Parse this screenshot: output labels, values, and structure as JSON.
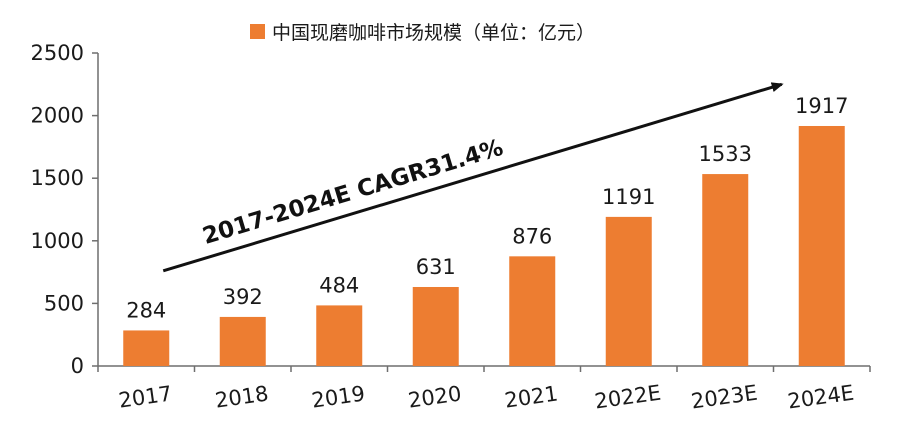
{
  "chart_data": {
    "type": "bar",
    "title": "",
    "legend": {
      "label": "中国现磨咖啡市场规模（单位：亿元）",
      "placement": "top-center"
    },
    "categories": [
      "2017",
      "2018",
      "2019",
      "2020",
      "2021",
      "2022E",
      "2023E",
      "2024E"
    ],
    "series": [
      {
        "name": "中国现磨咖啡市场规模（单位：亿元）",
        "values": [
          284,
          392,
          484,
          631,
          876,
          1191,
          1533,
          1917
        ]
      }
    ],
    "data_labels": [
      "284",
      "392",
      "484",
      "631",
      "876",
      "1191",
      "1533",
      "1917"
    ],
    "ylim": [
      0,
      2500
    ],
    "y_ticks": [
      0,
      500,
      1000,
      1500,
      2000,
      2500
    ],
    "y_tick_labels": [
      "0",
      "500",
      "1000",
      "1500",
      "2000",
      "2500"
    ],
    "xlabel": "",
    "ylabel": "",
    "grid": false,
    "annotation": {
      "text": "2017-2024E CAGR31.4%",
      "arrow_from": {
        "category": "2017",
        "value": 760
      },
      "arrow_to": {
        "category": "2024E",
        "value": 2250
      }
    },
    "colors": {
      "bar": "#ED7D31",
      "axis": "#6e6e6e",
      "text": "#1a1a1a"
    }
  }
}
